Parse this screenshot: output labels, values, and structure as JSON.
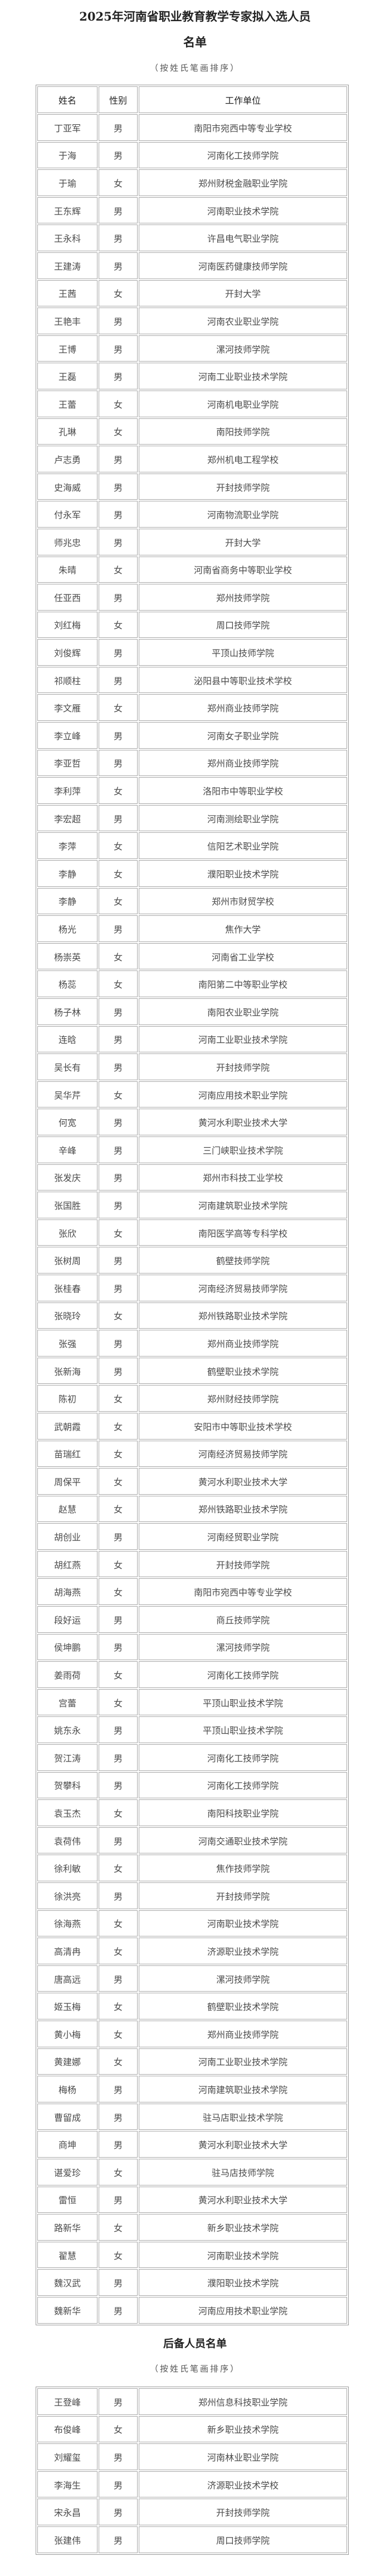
{
  "title_line1": "2025年河南省职业教育教学专家拟入选人员",
  "title_line2": "名单",
  "subtitle": "（按姓氏笔画排序）",
  "table_headers": [
    "姓名",
    "性别",
    "工作单位"
  ],
  "main_list": [
    [
      "丁亚军",
      "男",
      "南阳市宛西中等专业学校"
    ],
    [
      "于海",
      "男",
      "河南化工技师学院"
    ],
    [
      "于瑜",
      "女",
      "郑州财税金融职业学院"
    ],
    [
      "王东辉",
      "男",
      "河南职业技术学院"
    ],
    [
      "王永科",
      "男",
      "许昌电气职业学院"
    ],
    [
      "王建涛",
      "男",
      "河南医药健康技师学院"
    ],
    [
      "王茜",
      "女",
      "开封大学"
    ],
    [
      "王艳丰",
      "男",
      "河南农业职业学院"
    ],
    [
      "王博",
      "男",
      "漯河技师学院"
    ],
    [
      "王磊",
      "男",
      "河南工业职业技术学院"
    ],
    [
      "王蕾",
      "女",
      "河南机电职业学院"
    ],
    [
      "孔琳",
      "女",
      "南阳技师学院"
    ],
    [
      "卢志勇",
      "男",
      "郑州机电工程学校"
    ],
    [
      "史海威",
      "男",
      "开封技师学院"
    ],
    [
      "付永军",
      "男",
      "河南物流职业学院"
    ],
    [
      "师兆忠",
      "男",
      "开封大学"
    ],
    [
      "朱晴",
      "女",
      "河南省商务中等职业学校"
    ],
    [
      "任亚西",
      "男",
      "郑州技师学院"
    ],
    [
      "刘红梅",
      "女",
      "周口技师学院"
    ],
    [
      "刘俊辉",
      "男",
      "平顶山技师学院"
    ],
    [
      "祁顺柱",
      "男",
      "泌阳县中等职业技术学校"
    ],
    [
      "李文雁",
      "女",
      "郑州商业技师学院"
    ],
    [
      "李立峰",
      "男",
      "河南女子职业学院"
    ],
    [
      "李亚哲",
      "男",
      "郑州商业技师学院"
    ],
    [
      "李利萍",
      "女",
      "洛阳市中等职业学校"
    ],
    [
      "李宏超",
      "男",
      "河南测绘职业学院"
    ],
    [
      "李萍",
      "女",
      "信阳艺术职业学院"
    ],
    [
      "李静",
      "女",
      "濮阳职业技术学院"
    ],
    [
      "李静",
      "女",
      "郑州市财贸学校"
    ],
    [
      "杨光",
      "男",
      "焦作大学"
    ],
    [
      "杨崇英",
      "女",
      "河南省工业学校"
    ],
    [
      "杨蕊",
      "女",
      "南阳第二中等职业学校"
    ],
    [
      "杨子林",
      "男",
      "南阳农业职业学院"
    ],
    [
      "连晗",
      "男",
      "河南工业职业技术学院"
    ],
    [
      "吴长有",
      "男",
      "开封技师学院"
    ],
    [
      "吴华芹",
      "女",
      "河南应用技术职业学院"
    ],
    [
      "何宽",
      "男",
      "黄河水利职业技术大学"
    ],
    [
      "辛峰",
      "男",
      "三门峡职业技术学院"
    ],
    [
      "张发庆",
      "男",
      "郑州市科技工业学校"
    ],
    [
      "张国胜",
      "男",
      "河南建筑职业技术学院"
    ],
    [
      "张欣",
      "女",
      "南阳医学高等专科学校"
    ],
    [
      "张树周",
      "男",
      "鹤壁技师学院"
    ],
    [
      "张桂春",
      "男",
      "河南经济贸易技师学院"
    ],
    [
      "张晓玲",
      "女",
      "郑州铁路职业技术学院"
    ],
    [
      "张强",
      "男",
      "郑州商业技师学院"
    ],
    [
      "张新海",
      "男",
      "鹤壁职业技术学院"
    ],
    [
      "陈初",
      "女",
      "郑州财经技师学院"
    ],
    [
      "武朝霞",
      "女",
      "安阳市中等职业技术学校"
    ],
    [
      "苗瑞红",
      "女",
      "河南经济贸易技师学院"
    ],
    [
      "周保平",
      "女",
      "黄河水利职业技术大学"
    ],
    [
      "赵慧",
      "女",
      "郑州铁路职业技术学院"
    ],
    [
      "胡创业",
      "男",
      "河南经贸职业学院"
    ],
    [
      "胡红燕",
      "女",
      "开封技师学院"
    ],
    [
      "胡海燕",
      "女",
      "南阳市宛西中等专业学校"
    ],
    [
      "段好运",
      "男",
      "商丘技师学院"
    ],
    [
      "侯坤鹏",
      "男",
      "漯河技师学院"
    ],
    [
      "姜雨荷",
      "女",
      "河南化工技师学院"
    ],
    [
      "宫蕾",
      "女",
      "平顶山职业技术学院"
    ],
    [
      "姚东永",
      "男",
      "平顶山职业技术学院"
    ],
    [
      "贺江涛",
      "男",
      "河南化工技师学院"
    ],
    [
      "贺攀科",
      "男",
      "河南化工技师学院"
    ],
    [
      "袁玉杰",
      "女",
      "南阳科技职业学院"
    ],
    [
      "袁荷伟",
      "男",
      "河南交通职业技术学院"
    ],
    [
      "徐利敏",
      "女",
      "焦作技师学院"
    ],
    [
      "徐洪亮",
      "男",
      "开封技师学院"
    ],
    [
      "徐海燕",
      "女",
      "河南职业技术学院"
    ],
    [
      "高清冉",
      "女",
      "济源职业技术学院"
    ],
    [
      "唐高远",
      "男",
      "漯河技师学院"
    ],
    [
      "姬玉梅",
      "女",
      "鹤壁职业技术学院"
    ],
    [
      "黄小梅",
      "女",
      "郑州商业技师学院"
    ],
    [
      "黄建娜",
      "女",
      "河南工业职业技术学院"
    ],
    [
      "梅杨",
      "男",
      "河南建筑职业技术学院"
    ],
    [
      "曹留成",
      "男",
      "驻马店职业技术学院"
    ],
    [
      "商坤",
      "男",
      "黄河水利职业技术大学"
    ],
    [
      "谌爱珍",
      "女",
      "驻马店技师学院"
    ],
    [
      "雷恒",
      "男",
      "黄河水利职业技术大学"
    ],
    [
      "路新华",
      "女",
      "新乡职业技术学院"
    ],
    [
      "翟慧",
      "女",
      "河南职业技术学院"
    ],
    [
      "魏汉武",
      "男",
      "濮阳职业技术学院"
    ],
    [
      "魏新华",
      "男",
      "河南应用技术职业学院"
    ]
  ],
  "backup_title": "后备人员名单",
  "backup_subtitle": "（按姓氏笔画排序）",
  "backup_list": [
    [
      "王登峰",
      "男",
      "郑州信息科技职业学院"
    ],
    [
      "布俊峰",
      "女",
      "新乡职业技术学院"
    ],
    [
      "刘耀玺",
      "男",
      "河南林业职业学院"
    ],
    [
      "李海生",
      "男",
      "济源职业技术学校"
    ],
    [
      "宋永昌",
      "男",
      "开封技师学院"
    ],
    [
      "张建伟",
      "男",
      "周口技师学院"
    ]
  ]
}
